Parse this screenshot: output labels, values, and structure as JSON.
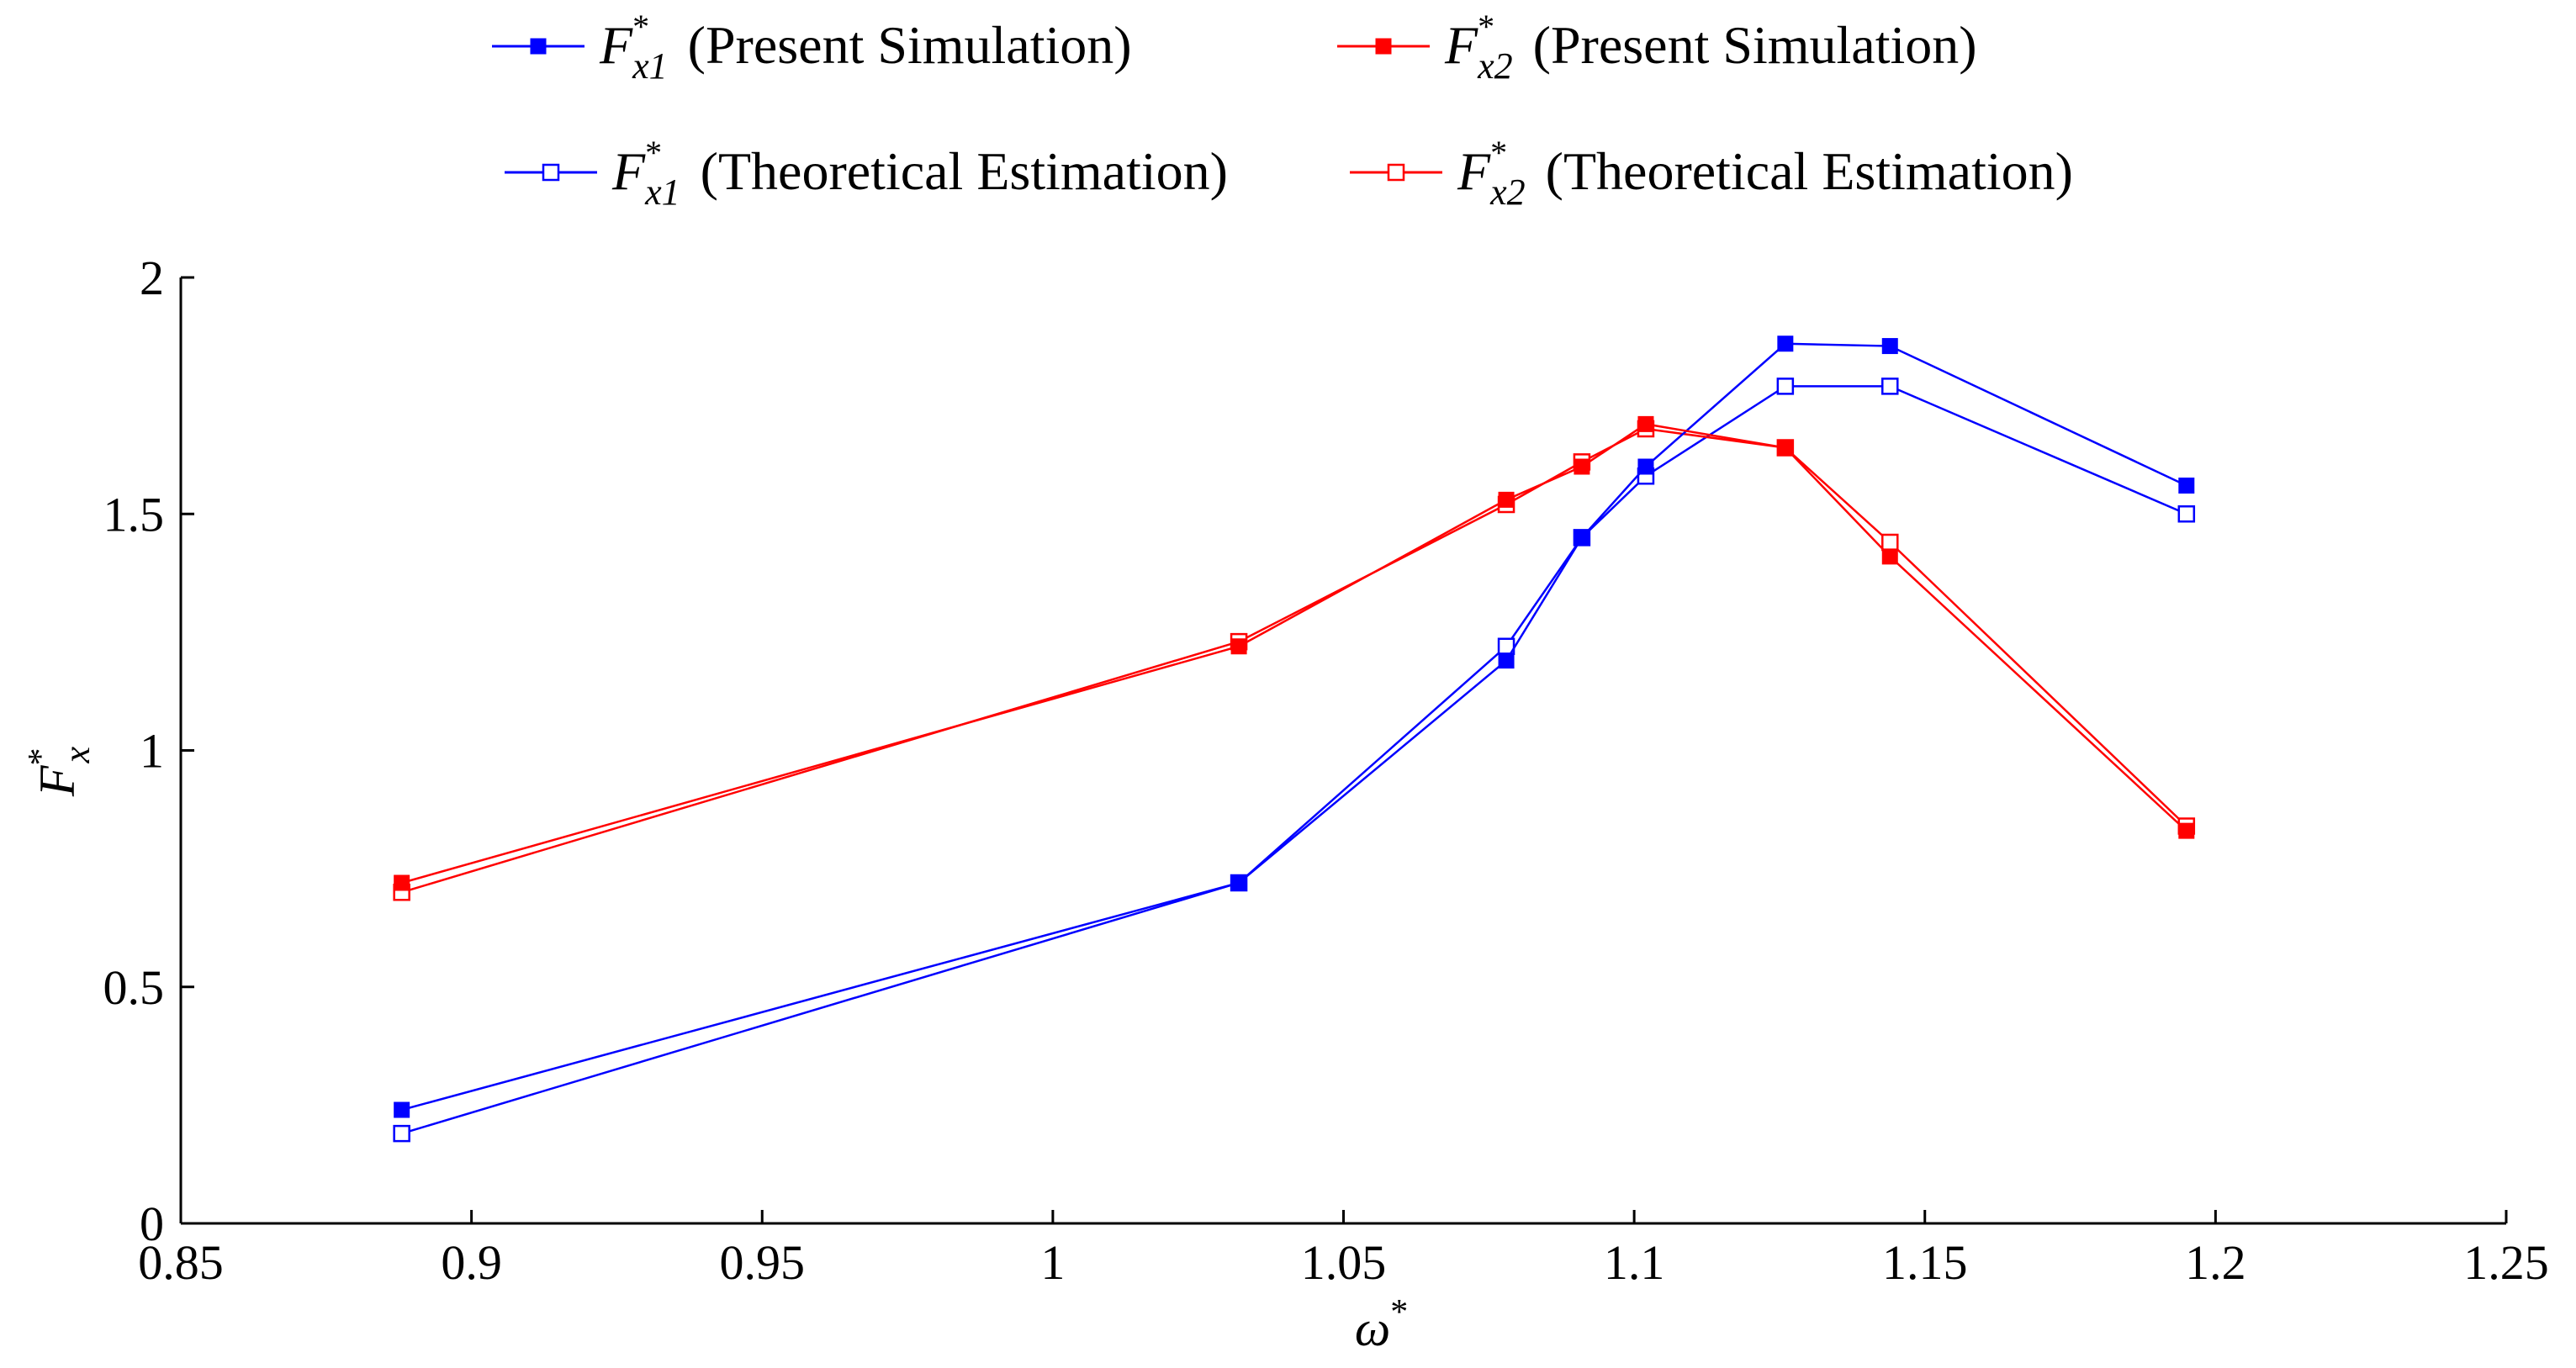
{
  "chart_data": {
    "type": "line",
    "title": "",
    "xlabel": "ω*",
    "ylabel": "F*x",
    "ylabel_parts": {
      "base": "F",
      "sup": "*",
      "sub": "x"
    },
    "xlabel_parts": {
      "base": "ω",
      "sup": "*"
    },
    "xlim": [
      0.85,
      1.25
    ],
    "ylim": [
      0,
      2
    ],
    "xticks": [
      0.85,
      0.9,
      0.95,
      1,
      1.05,
      1.1,
      1.15,
      1.2,
      1.25
    ],
    "xtick_labels": [
      "0.85",
      "0.9",
      "0.95",
      "1",
      "1.05",
      "1.1",
      "1.15",
      "1.2",
      "1.25"
    ],
    "yticks": [
      0,
      0.5,
      1,
      1.5,
      2
    ],
    "ytick_labels": [
      "0",
      "0.5",
      "1",
      "1.5",
      "2"
    ],
    "grid": false,
    "legend_position": "top-center",
    "series": [
      {
        "name": "F*x1 (Present Simulation)",
        "symbol": {
          "base": "F",
          "sup": "*",
          "sub": "x1"
        },
        "desc": "(Present Simulation)",
        "color": "#0000ff",
        "marker": "filled-square",
        "x": [
          0.888,
          1.032,
          1.078,
          1.091,
          1.102,
          1.126,
          1.144,
          1.195
        ],
        "y": [
          0.24,
          0.72,
          1.19,
          1.45,
          1.6,
          1.86,
          1.855,
          1.56
        ]
      },
      {
        "name": "F*x2 (Present Simulation)",
        "symbol": {
          "base": "F",
          "sup": "*",
          "sub": "x2"
        },
        "desc": "(Present Simulation)",
        "color": "#ff0000",
        "marker": "filled-square",
        "x": [
          0.888,
          1.032,
          1.078,
          1.091,
          1.102,
          1.126,
          1.144,
          1.195
        ],
        "y": [
          0.72,
          1.22,
          1.53,
          1.6,
          1.69,
          1.64,
          1.41,
          0.83
        ]
      },
      {
        "name": "F*x1 (Theoretical Estimation)",
        "symbol": {
          "base": "F",
          "sup": "*",
          "sub": "x1"
        },
        "desc": "(Theoretical Estimation)",
        "color": "#0000ff",
        "marker": "open-square",
        "x": [
          0.888,
          1.032,
          1.078,
          1.091,
          1.102,
          1.126,
          1.144,
          1.195
        ],
        "y": [
          0.19,
          0.72,
          1.22,
          1.45,
          1.58,
          1.77,
          1.77,
          1.5
        ]
      },
      {
        "name": "F*x2 (Theoretical Estimation)",
        "symbol": {
          "base": "F",
          "sup": "*",
          "sub": "x2"
        },
        "desc": "(Theoretical Estimation)",
        "color": "#ff0000",
        "marker": "open-square",
        "x": [
          0.888,
          1.032,
          1.078,
          1.091,
          1.102,
          1.126,
          1.144,
          1.195
        ],
        "y": [
          0.7,
          1.23,
          1.52,
          1.61,
          1.68,
          1.64,
          1.44,
          0.84
        ]
      }
    ]
  }
}
